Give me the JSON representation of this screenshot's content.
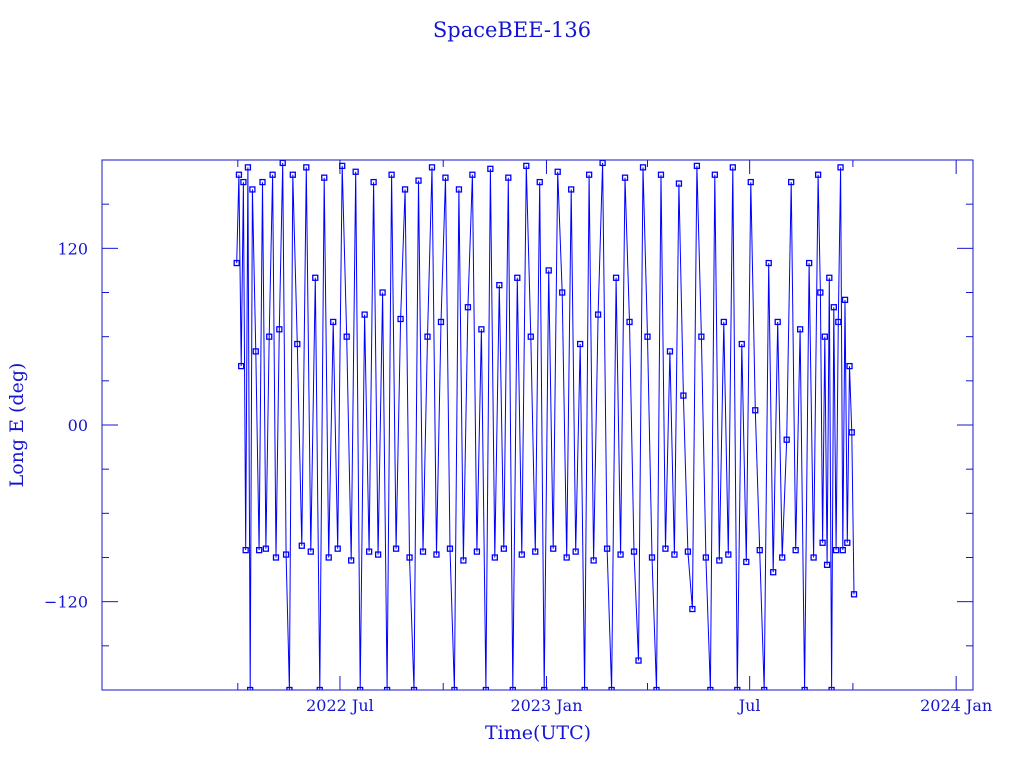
{
  "chart_data": {
    "type": "line",
    "title": "SpaceBEE-136",
    "xlabel": "Time(UTC)",
    "ylabel": "Long E (deg)",
    "xlim": [
      "2021-12-01",
      "2024-01-16"
    ],
    "ylim": [
      -180,
      180
    ],
    "x_ticks": [
      {
        "date": "2022-07-01",
        "label": "2022 Jul"
      },
      {
        "date": "2023-01-01",
        "label": "2023 Jan"
      },
      {
        "date": "2023-07-01",
        "label": "Jul"
      },
      {
        "date": "2024-01-01",
        "label": "2024 Jan"
      }
    ],
    "x_minor_ticks": [
      "2022-04-01",
      "2022-10-01",
      "2023-04-01",
      "2023-10-01"
    ],
    "y_ticks": [
      {
        "value": 120,
        "label": "120"
      },
      {
        "value": 0,
        "label": "00"
      },
      {
        "value": -120,
        "label": "-120"
      }
    ],
    "y_minor_step": 30,
    "grid": false,
    "marker": "square",
    "color": "#0000ff",
    "series": [
      {
        "points": [
          [
            "2022-03-31",
            110
          ],
          [
            "2022-04-02",
            170
          ],
          [
            "2022-04-04",
            40
          ],
          [
            "2022-04-06",
            165
          ],
          [
            "2022-04-08",
            -85
          ],
          [
            "2022-04-10",
            175
          ],
          [
            "2022-04-12",
            -180
          ],
          [
            "2022-04-14",
            160
          ],
          [
            "2022-04-17",
            50
          ],
          [
            "2022-04-20",
            -85
          ],
          [
            "2022-04-23",
            165
          ],
          [
            "2022-04-26",
            -84
          ],
          [
            "2022-04-29",
            60
          ],
          [
            "2022-05-02",
            170
          ],
          [
            "2022-05-05",
            -90
          ],
          [
            "2022-05-08",
            65
          ],
          [
            "2022-05-11",
            178
          ],
          [
            "2022-05-14",
            -88
          ],
          [
            "2022-05-17",
            -180
          ],
          [
            "2022-05-20",
            170
          ],
          [
            "2022-05-24",
            55
          ],
          [
            "2022-05-28",
            -82
          ],
          [
            "2022-06-01",
            175
          ],
          [
            "2022-06-05",
            -86
          ],
          [
            "2022-06-09",
            100
          ],
          [
            "2022-06-13",
            -180
          ],
          [
            "2022-06-17",
            168
          ],
          [
            "2022-06-21",
            -90
          ],
          [
            "2022-06-25",
            70
          ],
          [
            "2022-06-29",
            -84
          ],
          [
            "2022-07-03",
            176
          ],
          [
            "2022-07-07",
            60
          ],
          [
            "2022-07-11",
            -92
          ],
          [
            "2022-07-15",
            172
          ],
          [
            "2022-07-19",
            -180
          ],
          [
            "2022-07-23",
            75
          ],
          [
            "2022-07-27",
            -86
          ],
          [
            "2022-07-31",
            165
          ],
          [
            "2022-08-04",
            -88
          ],
          [
            "2022-08-08",
            90
          ],
          [
            "2022-08-12",
            -180
          ],
          [
            "2022-08-16",
            170
          ],
          [
            "2022-08-20",
            -84
          ],
          [
            "2022-08-24",
            72
          ],
          [
            "2022-08-28",
            160
          ],
          [
            "2022-09-01",
            -90
          ],
          [
            "2022-09-05",
            -180
          ],
          [
            "2022-09-09",
            166
          ],
          [
            "2022-09-13",
            -86
          ],
          [
            "2022-09-17",
            60
          ],
          [
            "2022-09-21",
            175
          ],
          [
            "2022-09-25",
            -88
          ],
          [
            "2022-09-29",
            70
          ],
          [
            "2022-10-03",
            168
          ],
          [
            "2022-10-07",
            -84
          ],
          [
            "2022-10-11",
            -180
          ],
          [
            "2022-10-15",
            160
          ],
          [
            "2022-10-19",
            -92
          ],
          [
            "2022-10-23",
            80
          ],
          [
            "2022-10-27",
            170
          ],
          [
            "2022-10-31",
            -86
          ],
          [
            "2022-11-04",
            65
          ],
          [
            "2022-11-08",
            -180
          ],
          [
            "2022-11-12",
            174
          ],
          [
            "2022-11-16",
            -90
          ],
          [
            "2022-11-20",
            95
          ],
          [
            "2022-11-24",
            -84
          ],
          [
            "2022-11-28",
            168
          ],
          [
            "2022-12-02",
            -180
          ],
          [
            "2022-12-06",
            100
          ],
          [
            "2022-12-10",
            -88
          ],
          [
            "2022-12-14",
            176
          ],
          [
            "2022-12-18",
            60
          ],
          [
            "2022-12-22",
            -86
          ],
          [
            "2022-12-26",
            165
          ],
          [
            "2022-12-30",
            -180
          ],
          [
            "2023-01-03",
            105
          ],
          [
            "2023-01-07",
            -84
          ],
          [
            "2023-01-11",
            172
          ],
          [
            "2023-01-15",
            90
          ],
          [
            "2023-01-19",
            -90
          ],
          [
            "2023-01-23",
            160
          ],
          [
            "2023-01-27",
            -86
          ],
          [
            "2023-01-31",
            55
          ],
          [
            "2023-02-04",
            -180
          ],
          [
            "2023-02-08",
            170
          ],
          [
            "2023-02-12",
            -92
          ],
          [
            "2023-02-16",
            75
          ],
          [
            "2023-02-20",
            178
          ],
          [
            "2023-02-24",
            -84
          ],
          [
            "2023-02-28",
            -180
          ],
          [
            "2023-03-04",
            100
          ],
          [
            "2023-03-08",
            -88
          ],
          [
            "2023-03-12",
            168
          ],
          [
            "2023-03-16",
            70
          ],
          [
            "2023-03-20",
            -86
          ],
          [
            "2023-03-24",
            -160
          ],
          [
            "2023-03-28",
            175
          ],
          [
            "2023-04-01",
            60
          ],
          [
            "2023-04-05",
            -90
          ],
          [
            "2023-04-09",
            -180
          ],
          [
            "2023-04-13",
            170
          ],
          [
            "2023-04-17",
            -84
          ],
          [
            "2023-04-21",
            50
          ],
          [
            "2023-04-25",
            -88
          ],
          [
            "2023-04-29",
            164
          ],
          [
            "2023-05-03",
            20
          ],
          [
            "2023-05-07",
            -86
          ],
          [
            "2023-05-11",
            -125
          ],
          [
            "2023-05-15",
            176
          ],
          [
            "2023-05-19",
            60
          ],
          [
            "2023-05-23",
            -90
          ],
          [
            "2023-05-27",
            -180
          ],
          [
            "2023-05-31",
            170
          ],
          [
            "2023-06-04",
            -92
          ],
          [
            "2023-06-08",
            70
          ],
          [
            "2023-06-12",
            -88
          ],
          [
            "2023-06-16",
            175
          ],
          [
            "2023-06-20",
            -180
          ],
          [
            "2023-06-24",
            55
          ],
          [
            "2023-06-28",
            -93
          ],
          [
            "2023-07-02",
            165
          ],
          [
            "2023-07-06",
            10
          ],
          [
            "2023-07-10",
            -85
          ],
          [
            "2023-07-14",
            -180
          ],
          [
            "2023-07-18",
            110
          ],
          [
            "2023-07-22",
            -100
          ],
          [
            "2023-07-26",
            70
          ],
          [
            "2023-07-30",
            -90
          ],
          [
            "2023-08-03",
            -10
          ],
          [
            "2023-08-07",
            165
          ],
          [
            "2023-08-11",
            -85
          ],
          [
            "2023-08-15",
            65
          ],
          [
            "2023-08-19",
            -180
          ],
          [
            "2023-08-23",
            110
          ],
          [
            "2023-08-27",
            -90
          ],
          [
            "2023-08-31",
            170
          ],
          [
            "2023-09-02",
            90
          ],
          [
            "2023-09-04",
            -80
          ],
          [
            "2023-09-06",
            60
          ],
          [
            "2023-09-08",
            -95
          ],
          [
            "2023-09-10",
            100
          ],
          [
            "2023-09-12",
            -180
          ],
          [
            "2023-09-14",
            80
          ],
          [
            "2023-09-16",
            -85
          ],
          [
            "2023-09-18",
            70
          ],
          [
            "2023-09-20",
            175
          ],
          [
            "2023-09-22",
            -85
          ],
          [
            "2023-09-24",
            85
          ],
          [
            "2023-09-26",
            -80
          ],
          [
            "2023-09-28",
            40
          ],
          [
            "2023-09-30",
            -5
          ],
          [
            "2023-10-02",
            -115
          ]
        ]
      }
    ]
  }
}
